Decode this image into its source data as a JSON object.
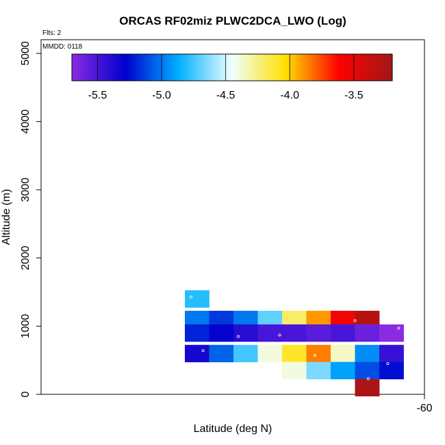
{
  "chart_data": {
    "type": "heatmap",
    "title": "ORCAS RF02miz PLWC2DCA_LWO (Log)",
    "xlabel": "Latitude (deg N)",
    "ylabel": "Altitude (m)",
    "annotations": {
      "flights": "Flts: 2",
      "date": "MMDD: 0118"
    },
    "x_ticks": [
      "-60"
    ],
    "y_ticks": [
      "0",
      "1000",
      "2000",
      "3000",
      "4000",
      "5000"
    ],
    "ylim": [
      0,
      5200
    ],
    "colorbar": {
      "range": [
        -5.7,
        -3.2
      ],
      "ticks": [
        "-5.5",
        "-5.0",
        "-4.5",
        "-4.0",
        "-3.5"
      ],
      "colors": [
        "#8a2be2",
        "#0000cd",
        "#00b0ff",
        "#f0ffff",
        "#ffe000",
        "#ff0000",
        "#a01818"
      ]
    },
    "cells": [
      {
        "col": 0,
        "alt": 1400,
        "value": -4.8
      },
      {
        "col": 0,
        "alt": 1100,
        "value": -5.0
      },
      {
        "col": 0,
        "alt": 900,
        "value": -5.2
      },
      {
        "col": 0,
        "alt": 600,
        "value": -5.35
      },
      {
        "col": 1,
        "alt": 1100,
        "value": -5.15
      },
      {
        "col": 1,
        "alt": 900,
        "value": -5.3
      },
      {
        "col": 1,
        "alt": 600,
        "value": -5.05
      },
      {
        "col": 2,
        "alt": 1100,
        "value": -5.0
      },
      {
        "col": 2,
        "alt": 900,
        "value": -5.4
      },
      {
        "col": 2,
        "alt": 600,
        "value": -4.75
      },
      {
        "col": 3,
        "alt": 1100,
        "value": -4.7
      },
      {
        "col": 3,
        "alt": 900,
        "value": -5.5
      },
      {
        "col": 3,
        "alt": 600,
        "value": -4.4
      },
      {
        "col": 4,
        "alt": 1100,
        "value": -4.2
      },
      {
        "col": 4,
        "alt": 900,
        "value": -5.5
      },
      {
        "col": 4,
        "alt": 600,
        "value": -4.1
      },
      {
        "col": 4,
        "alt": 350,
        "value": -4.4
      },
      {
        "col": 5,
        "alt": 1100,
        "value": -3.9
      },
      {
        "col": 5,
        "alt": 900,
        "value": -5.55
      },
      {
        "col": 5,
        "alt": 600,
        "value": -3.85
      },
      {
        "col": 5,
        "alt": 350,
        "value": -4.65
      },
      {
        "col": 6,
        "alt": 1100,
        "value": -3.55
      },
      {
        "col": 6,
        "alt": 900,
        "value": -5.5
      },
      {
        "col": 6,
        "alt": 600,
        "value": -4.35
      },
      {
        "col": 6,
        "alt": 350,
        "value": -4.9
      },
      {
        "col": 7,
        "alt": 1100,
        "value": -3.3
      },
      {
        "col": 7,
        "alt": 900,
        "value": -5.6
      },
      {
        "col": 7,
        "alt": 600,
        "value": -4.95
      },
      {
        "col": 7,
        "alt": 350,
        "value": -5.1
      },
      {
        "col": 7,
        "alt": 100,
        "value": -3.25
      },
      {
        "col": 8,
        "alt": 900,
        "value": -5.7
      },
      {
        "col": 8,
        "alt": 600,
        "value": -5.45
      },
      {
        "col": 8,
        "alt": 350,
        "value": -5.25
      }
    ],
    "markers": [
      {
        "col": 0,
        "fx": 0.25,
        "alt": 1430
      },
      {
        "col": 0,
        "fx": 0.75,
        "alt": 640
      },
      {
        "col": 2,
        "fx": 0.2,
        "alt": 850
      },
      {
        "col": 3,
        "fx": 0.9,
        "alt": 870
      },
      {
        "col": 5,
        "fx": 0.35,
        "alt": 570
      },
      {
        "col": 7,
        "fx": 0.0,
        "alt": 1080
      },
      {
        "col": 7,
        "fx": 0.55,
        "alt": 230
      },
      {
        "col": 8,
        "fx": 0.35,
        "alt": 450
      },
      {
        "col": 8,
        "fx": 0.8,
        "alt": 970
      }
    ]
  }
}
